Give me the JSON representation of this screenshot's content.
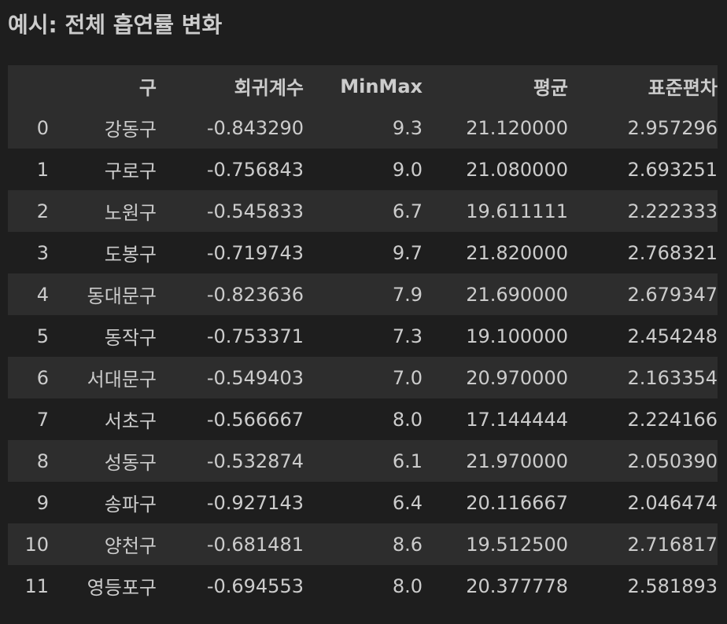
{
  "title": "예시: 전체 흡연률 변화",
  "table": {
    "columns": [
      "",
      "구",
      "회귀계수",
      "MinMax",
      "평균",
      "표준편차"
    ],
    "rows": [
      [
        "0",
        "강동구",
        "-0.843290",
        "9.3",
        "21.120000",
        "2.957296"
      ],
      [
        "1",
        "구로구",
        "-0.756843",
        "9.0",
        "21.080000",
        "2.693251"
      ],
      [
        "2",
        "노원구",
        "-0.545833",
        "6.7",
        "19.611111",
        "2.222333"
      ],
      [
        "3",
        "도봉구",
        "-0.719743",
        "9.7",
        "21.820000",
        "2.768321"
      ],
      [
        "4",
        "동대문구",
        "-0.823636",
        "7.9",
        "21.690000",
        "2.679347"
      ],
      [
        "5",
        "동작구",
        "-0.753371",
        "7.3",
        "19.100000",
        "2.454248"
      ],
      [
        "6",
        "서대문구",
        "-0.549403",
        "7.0",
        "20.970000",
        "2.163354"
      ],
      [
        "7",
        "서초구",
        "-0.566667",
        "8.0",
        "17.144444",
        "2.224166"
      ],
      [
        "8",
        "성동구",
        "-0.532874",
        "6.1",
        "21.970000",
        "2.050390"
      ],
      [
        "9",
        "송파구",
        "-0.927143",
        "6.4",
        "20.116667",
        "2.046474"
      ],
      [
        "10",
        "양천구",
        "-0.681481",
        "8.6",
        "19.512500",
        "2.716817"
      ],
      [
        "11",
        "영등포구",
        "-0.694553",
        "8.0",
        "20.377778",
        "2.581893"
      ]
    ]
  }
}
